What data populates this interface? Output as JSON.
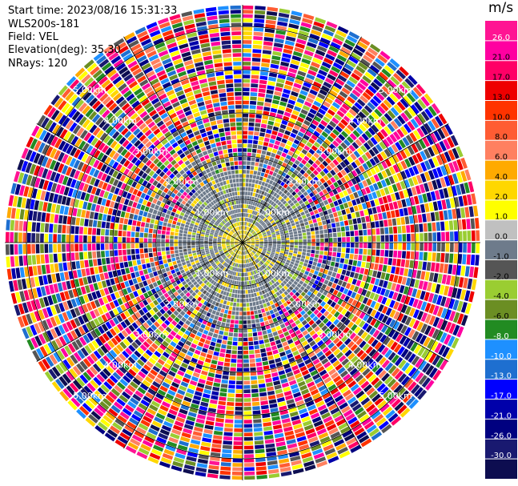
{
  "info": {
    "start_time": "Start time: 2023/08/16 15:31:33",
    "device": "WLS200s-181",
    "field": "Field: VEL",
    "elevation": "Elevation(deg): 35.30",
    "nrays": "NRays: 120"
  },
  "chart_data": {
    "type": "heatmap",
    "subtype": "polar-ppi",
    "title": "",
    "field": "VEL",
    "units": "m/s",
    "elevation_deg": 35.3,
    "n_rays": 120,
    "range_max_km": 5.5,
    "range_rings_km": [
      1.0,
      2.0,
      3.0,
      4.0,
      5.0
    ],
    "range_ring_labels": [
      "1.00km",
      "2.00km",
      "3.00km",
      "4.00km",
      "5.00km"
    ],
    "colorbar": {
      "title": "m/s",
      "ticks": [
        "26.0",
        "21.0",
        "17.0",
        "13.0",
        "10.0",
        "8.0",
        "6.0",
        "4.0",
        "2.0",
        "1.0",
        "0.0",
        "-1.0",
        "-2.0",
        "-4.0",
        "-6.0",
        "-8.0",
        "-10.0",
        "-13.0",
        "-17.0",
        "-21.0",
        "-26.0",
        "-30.0"
      ],
      "colors": [
        "#ff1493",
        "#ff00a0",
        "#ff0066",
        "#ee0000",
        "#ff3300",
        "#ff5c33",
        "#ff8060",
        "#ffaa00",
        "#ffd700",
        "#ffff00",
        "#c0c0c0",
        "#6e7b8b",
        "#555555",
        "#9acd32",
        "#6b8e23",
        "#228b22",
        "#1e90ff",
        "#1e6fd0",
        "#0000ff",
        "#0000aa",
        "#000080",
        "#191970",
        "#0d0d50"
      ]
    },
    "pattern_notes": "Inner region (<1.5 km) mostly gray (0 m/s) with yellow (2 m/s) patch near center; noisy multicolor velocities beyond ~2 km"
  }
}
